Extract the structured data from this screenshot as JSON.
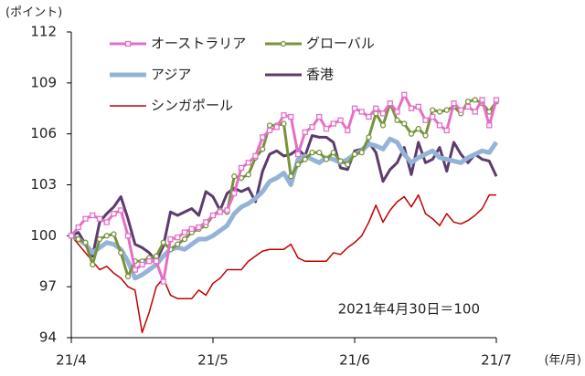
{
  "chart_data": {
    "type": "line",
    "y_label": "(ポイント)",
    "x_label": "(年/月)",
    "annotation": "2021年4月30日＝100",
    "x": [
      0,
      1,
      2,
      3,
      4,
      5,
      6,
      7,
      8,
      9,
      10,
      11,
      12,
      13,
      14,
      15,
      16,
      17,
      18,
      19,
      20,
      21,
      22,
      23,
      24,
      25,
      26,
      27,
      28,
      29,
      30,
      31,
      32,
      33,
      34,
      35,
      36,
      37,
      38,
      39,
      40,
      41,
      42,
      43,
      44,
      45,
      46,
      47,
      48,
      49,
      50,
      51,
      52,
      53,
      54,
      55,
      56,
      57,
      58,
      59,
      60
    ],
    "xlim": [
      0,
      60
    ],
    "xticks": [
      {
        "value": 0,
        "label": "21/4"
      },
      {
        "value": 20,
        "label": "21/5"
      },
      {
        "value": 40,
        "label": "21/6"
      },
      {
        "value": 60,
        "label": "21/7"
      }
    ],
    "ylim": [
      94,
      112
    ],
    "yticks": [
      94,
      97,
      100,
      103,
      106,
      109,
      112
    ],
    "grid": false,
    "series": [
      {
        "name": "オーストラリア",
        "color": "#e56ec6",
        "marker": "square",
        "width": 3,
        "values": [
          100,
          100.5,
          101,
          101.2,
          101,
          100.8,
          101.3,
          101.5,
          100,
          98,
          98.3,
          98.5,
          98.5,
          97.3,
          99.8,
          99.9,
          100.2,
          100.4,
          100.5,
          100.8,
          101.2,
          101.4,
          101.5,
          102.5,
          104,
          104.3,
          104.7,
          105.8,
          106.2,
          106.4,
          107.1,
          107,
          104.8,
          106.1,
          106.4,
          107,
          106.3,
          106.6,
          106.8,
          106.2,
          107.5,
          107.3,
          107,
          107.5,
          107.2,
          107.8,
          107.3,
          108.3,
          107.5,
          107.6,
          106.8,
          107,
          106.5,
          106.2,
          107.8,
          107.4,
          107.6,
          107.3,
          108,
          106.5,
          108
        ]
      },
      {
        "name": "グローバル",
        "color": "#77933c",
        "marker": "circle",
        "width": 3,
        "values": [
          100,
          99.8,
          99.6,
          98.3,
          99.8,
          100,
          100.1,
          99,
          97.6,
          98.5,
          98.5,
          98.7,
          98.8,
          99.6,
          99.2,
          99.5,
          99.8,
          100.2,
          100.4,
          100.6,
          101.2,
          101.5,
          101.4,
          103.5,
          103.4,
          103.6,
          104.6,
          105.1,
          106.5,
          106.5,
          106.6,
          103.5,
          104.2,
          104.5,
          104.9,
          104.9,
          104.5,
          104.9,
          104.4,
          104.2,
          104.8,
          104.9,
          105.8,
          107.2,
          106.5,
          107.8,
          106.8,
          106.6,
          106,
          106.3,
          105.9,
          107.4,
          107.3,
          107.4,
          107.6,
          107.2,
          107.9,
          108,
          107.8,
          107.3,
          107.9
        ]
      },
      {
        "name": "アジア",
        "color": "#95b3d7",
        "marker": "none",
        "width": 5,
        "values": [
          100,
          99.8,
          99.5,
          99,
          99.3,
          99.6,
          99.5,
          99.2,
          98.5,
          97.5,
          97.7,
          98,
          98.3,
          98.8,
          99.2,
          99.3,
          99.2,
          99.5,
          99.8,
          99.8,
          100,
          100.3,
          100.6,
          101.3,
          101.7,
          101.9,
          102.2,
          102.6,
          103.2,
          103.4,
          103.7,
          103,
          104.5,
          104.7,
          104.5,
          104.3,
          104.6,
          104.5,
          104.3,
          104.5,
          104.8,
          105,
          105.4,
          105.3,
          105.1,
          105.7,
          105.5,
          104.8,
          104.3,
          104.6,
          104.8,
          105,
          104.6,
          104.5,
          104.4,
          104.3,
          104.6,
          104.8,
          105,
          104.9,
          105.5
        ]
      },
      {
        "name": "香港",
        "color": "#5c3b6f",
        "marker": "none",
        "width": 3,
        "values": [
          100,
          100.2,
          99.5,
          98.8,
          100.8,
          101.3,
          101.7,
          102.3,
          101,
          99.5,
          99.3,
          99,
          98.5,
          99.4,
          101.4,
          101.2,
          101.4,
          101.6,
          101.2,
          102.6,
          102.3,
          101.5,
          102.5,
          102.8,
          102.6,
          102.8,
          102,
          103.8,
          104.8,
          105,
          104.7,
          104.8,
          105.1,
          104.7,
          105.9,
          105.8,
          105.8,
          105.5,
          104,
          103.9,
          105,
          105.1,
          105.5,
          104.9,
          103.2,
          103.9,
          104.3,
          105.2,
          103.6,
          105.5,
          104.3,
          104.5,
          105.2,
          103.8,
          105.5,
          104.8,
          104.3,
          104.8,
          104.5,
          104.4,
          103.5
        ]
      },
      {
        "name": "シンガポール",
        "color": "#c00000",
        "marker": "none",
        "width": 1.5,
        "values": [
          100,
          99.5,
          99,
          98.5,
          98,
          98.2,
          97.8,
          97.5,
          97,
          96.8,
          94.3,
          95.5,
          97,
          97.5,
          96.5,
          96.3,
          96.3,
          96.3,
          96.8,
          96.5,
          97.2,
          97.5,
          98,
          98,
          98,
          98.5,
          98.8,
          99.1,
          99.2,
          99.2,
          99.2,
          99.5,
          98.7,
          98.5,
          98.5,
          98.5,
          98.5,
          99,
          98.9,
          99.3,
          99.6,
          100,
          100.8,
          101.8,
          100.8,
          101.5,
          102,
          102.3,
          101.7,
          102.4,
          101.3,
          101,
          100.6,
          101.3,
          100.8,
          100.7,
          100.9,
          101.2,
          101.6,
          102.4,
          102.4
        ]
      }
    ]
  }
}
